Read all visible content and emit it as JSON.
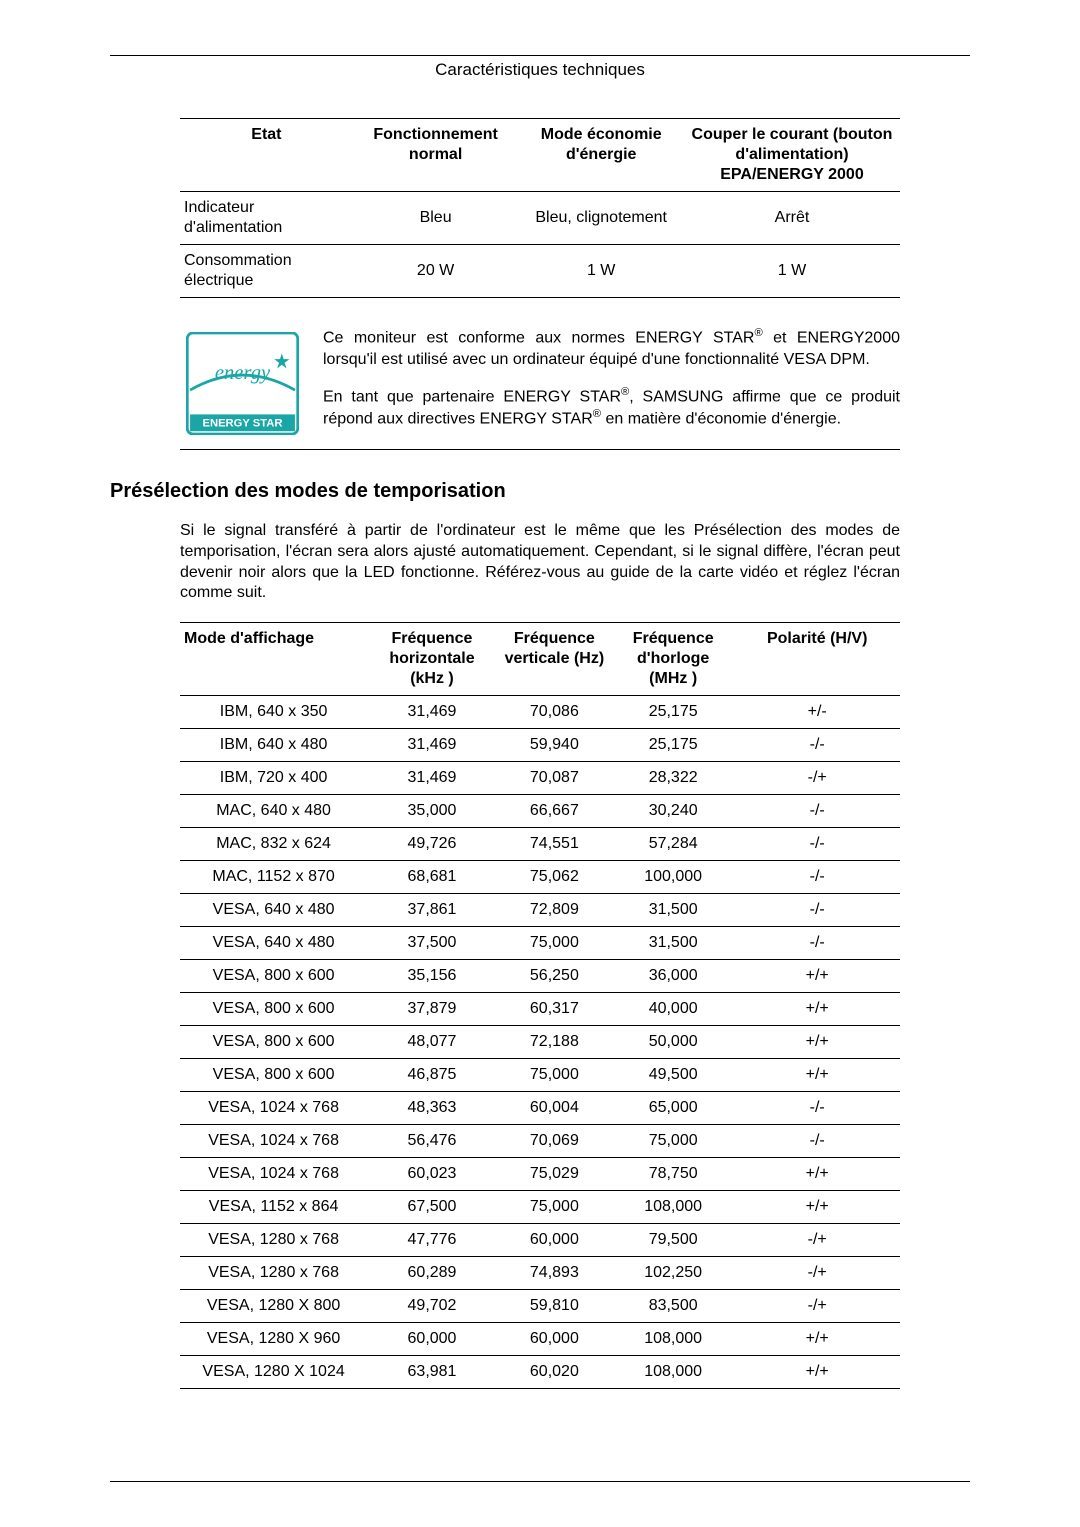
{
  "page_header": "Caractéristiques techniques",
  "power_table": {
    "headers": [
      "Etat",
      "Fonctionnement normal",
      "Mode économie d'énergie",
      "Couper le courant (bouton d'alimentation) EPA/ENERGY 2000"
    ],
    "rows": [
      [
        "Indicateur d'alimentation",
        "Bleu",
        "Bleu, clignotement",
        "Arrêt"
      ],
      [
        "Consommation électrique",
        "20 W",
        "1 W",
        "1 W"
      ]
    ]
  },
  "energy_star": {
    "logo_script": "energy",
    "logo_label": "ENERGY STAR",
    "para1_a": "Ce moniteur est conforme aux normes ENERGY STAR",
    "para1_b": " et ENERGY2000 lorsqu'il est utilisé avec un ordinateur équipé d'une fonctionnalité VESA DPM.",
    "para2_a": "En tant que partenaire ENERGY STAR",
    "para2_b": ", SAMSUNG affirme que ce produit répond aux directives ENERGY STAR",
    "para2_c": " en matière d'économie d'énergie."
  },
  "section_title": "Présélection des modes de temporisation",
  "intro_text": "Si le signal transféré à partir de l'ordinateur est le même que les Présélection des modes de temporisation, l'écran sera alors ajusté automatiquement. Cependant, si le signal diffère, l'écran peut devenir noir alors que la LED fonctionne. Référez-vous au guide de la carte vidéo et réglez l'écran comme suit.",
  "timing_table": {
    "headers": [
      "Mode d'affichage",
      "Fréquence horizontale (kHz )",
      "Fréquence verticale (Hz)",
      "Fréquence d'horloge (MHz )",
      "Polarité (H/V)"
    ],
    "rows": [
      [
        "IBM, 640 x 350",
        "31,469",
        "70,086",
        "25,175",
        "+/-"
      ],
      [
        "IBM, 640 x 480",
        "31,469",
        "59,940",
        "25,175",
        "-/-"
      ],
      [
        "IBM, 720 x 400",
        "31,469",
        "70,087",
        "28,322",
        "-/+"
      ],
      [
        "MAC, 640 x 480",
        "35,000",
        "66,667",
        "30,240",
        "-/-"
      ],
      [
        "MAC, 832 x 624",
        "49,726",
        "74,551",
        "57,284",
        "-/-"
      ],
      [
        "MAC, 1152 x 870",
        "68,681",
        "75,062",
        "100,000",
        "-/-"
      ],
      [
        "VESA, 640 x 480",
        "37,861",
        "72,809",
        "31,500",
        "-/-"
      ],
      [
        "VESA, 640 x 480",
        "37,500",
        "75,000",
        "31,500",
        "-/-"
      ],
      [
        "VESA, 800 x 600",
        "35,156",
        "56,250",
        "36,000",
        "+/+"
      ],
      [
        "VESA, 800 x 600",
        "37,879",
        "60,317",
        "40,000",
        "+/+"
      ],
      [
        "VESA, 800 x 600",
        "48,077",
        "72,188",
        "50,000",
        "+/+"
      ],
      [
        "VESA, 800 x 600",
        "46,875",
        "75,000",
        "49,500",
        "+/+"
      ],
      [
        "VESA, 1024 x 768",
        "48,363",
        "60,004",
        "65,000",
        "-/-"
      ],
      [
        "VESA, 1024 x 768",
        "56,476",
        "70,069",
        "75,000",
        "-/-"
      ],
      [
        "VESA, 1024 x 768",
        "60,023",
        "75,029",
        "78,750",
        "+/+"
      ],
      [
        "VESA, 1152 x 864",
        "67,500",
        "75,000",
        "108,000",
        "+/+"
      ],
      [
        "VESA, 1280 x 768",
        "47,776",
        "60,000",
        "79,500",
        "-/+"
      ],
      [
        "VESA, 1280 x 768",
        "60,289",
        "74,893",
        "102,250",
        "-/+"
      ],
      [
        "VESA, 1280 X 800",
        "49,702",
        "59,810",
        "83,500",
        "-/+"
      ],
      [
        "VESA, 1280 X 960",
        "60,000",
        "60,000",
        "108,000",
        "+/+"
      ],
      [
        "VESA, 1280 X 1024",
        "63,981",
        "60,020",
        "108,000",
        "+/+"
      ]
    ],
    "col_widths": [
      "26%",
      "18%",
      "16%",
      "17%",
      "23%"
    ]
  },
  "colors": {
    "teal": "#1aa6a6",
    "white": "#ffffff"
  }
}
